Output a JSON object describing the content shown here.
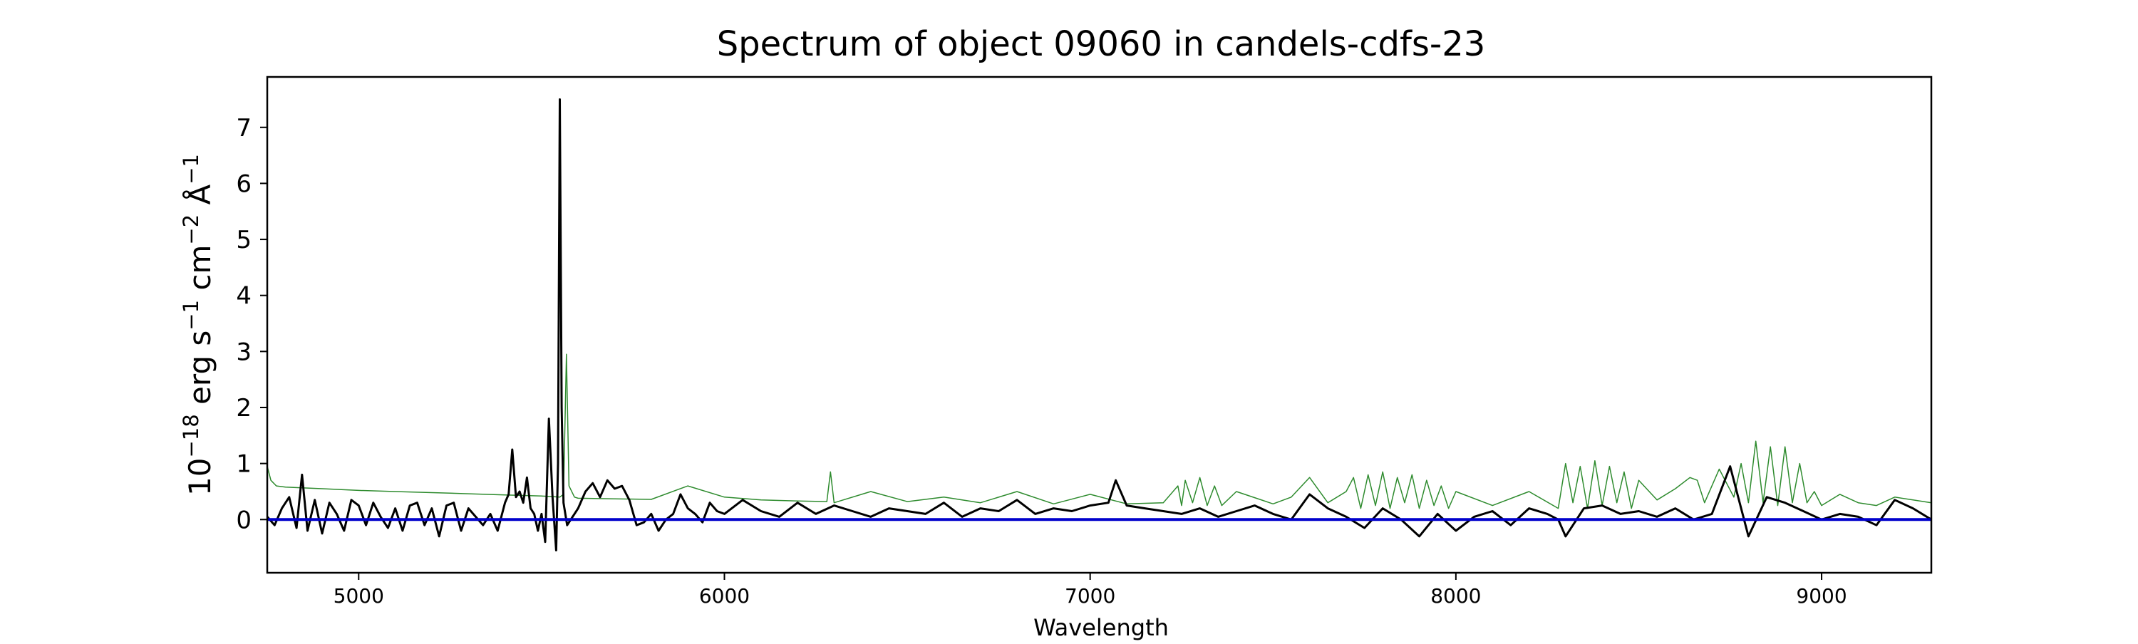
{
  "chart_data": {
    "type": "line",
    "title": "Spectrum of object 09060 in candels-cdfs-23",
    "xlabel": "Wavelength",
    "ylabel_prefix": "10",
    "ylabel_exp1": "−18",
    "ylabel_mid1": " erg s",
    "ylabel_exp2": "−1",
    "ylabel_mid2": " cm",
    "ylabel_exp3": "−2",
    "ylabel_mid3": " Å",
    "ylabel_exp4": "−1",
    "xlim": [
      4750,
      9300
    ],
    "ylim": [
      -0.95,
      7.9
    ],
    "xticks": [
      5000,
      6000,
      7000,
      8000,
      9000
    ],
    "xtick_labels": [
      "5000",
      "6000",
      "7000",
      "8000",
      "9000"
    ],
    "yticks": [
      0,
      1,
      2,
      3,
      4,
      5,
      6,
      7
    ],
    "ytick_labels": [
      "0",
      "1",
      "2",
      "3",
      "4",
      "5",
      "6",
      "7"
    ],
    "grid": false,
    "colors": {
      "spectrum": "#000000",
      "template": "#2e8b2e",
      "zero_line": "#0000cc",
      "axes": "#000000"
    },
    "series": [
      {
        "role": "spectrum",
        "x": [
          4750,
          4770,
          4790,
          4810,
          4830,
          4845,
          4860,
          4880,
          4900,
          4920,
          4940,
          4960,
          4980,
          5000,
          5020,
          5040,
          5060,
          5080,
          5100,
          5120,
          5140,
          5160,
          5180,
          5200,
          5220,
          5240,
          5260,
          5280,
          5300,
          5320,
          5340,
          5360,
          5380,
          5400,
          5410,
          5420,
          5430,
          5440,
          5450,
          5460,
          5470,
          5480,
          5490,
          5500,
          5510,
          5520,
          5530,
          5540,
          5545,
          5550,
          5555,
          5560,
          5570,
          5580,
          5590,
          5600,
          5620,
          5640,
          5660,
          5680,
          5700,
          5720,
          5740,
          5760,
          5780,
          5800,
          5820,
          5840,
          5860,
          5880,
          5900,
          5920,
          5940,
          5960,
          5980,
          6000,
          6050,
          6100,
          6150,
          6200,
          6250,
          6300,
          6350,
          6400,
          6450,
          6500,
          6550,
          6600,
          6650,
          6700,
          6750,
          6800,
          6850,
          6900,
          6950,
          7000,
          7050,
          7070,
          7100,
          7150,
          7200,
          7250,
          7300,
          7350,
          7400,
          7450,
          7500,
          7550,
          7600,
          7650,
          7700,
          7750,
          7800,
          7850,
          7900,
          7950,
          8000,
          8050,
          8100,
          8150,
          8200,
          8250,
          8280,
          8300,
          8350,
          8400,
          8450,
          8500,
          8550,
          8600,
          8650,
          8700,
          8750,
          8800,
          8850,
          8900,
          8950,
          9000,
          9050,
          9100,
          9150,
          9200,
          9250,
          9300
        ],
        "y": [
          0.05,
          -0.1,
          0.2,
          0.4,
          -0.15,
          0.8,
          -0.2,
          0.35,
          -0.25,
          0.3,
          0.1,
          -0.2,
          0.35,
          0.25,
          -0.1,
          0.3,
          0.05,
          -0.15,
          0.2,
          -0.2,
          0.25,
          0.3,
          -0.1,
          0.2,
          -0.3,
          0.25,
          0.3,
          -0.2,
          0.2,
          0.05,
          -0.1,
          0.1,
          -0.2,
          0.3,
          0.45,
          1.25,
          0.4,
          0.5,
          0.3,
          0.75,
          0.2,
          0.1,
          -0.2,
          0.1,
          -0.4,
          1.8,
          0.4,
          -0.55,
          1.0,
          7.5,
          2.0,
          0.3,
          -0.1,
          0.0,
          0.1,
          0.2,
          0.5,
          0.65,
          0.4,
          0.7,
          0.55,
          0.6,
          0.35,
          -0.1,
          -0.05,
          0.1,
          -0.2,
          0.0,
          0.1,
          0.45,
          0.2,
          0.1,
          -0.05,
          0.3,
          0.15,
          0.1,
          0.35,
          0.15,
          0.05,
          0.3,
          0.1,
          0.25,
          0.15,
          0.05,
          0.2,
          0.15,
          0.1,
          0.3,
          0.05,
          0.2,
          0.15,
          0.35,
          0.1,
          0.2,
          0.15,
          0.25,
          0.3,
          0.7,
          0.25,
          0.2,
          0.15,
          0.1,
          0.2,
          0.05,
          0.15,
          0.25,
          0.1,
          0.0,
          0.45,
          0.2,
          0.05,
          -0.15,
          0.2,
          0.0,
          -0.3,
          0.1,
          -0.2,
          0.05,
          0.15,
          -0.1,
          0.2,
          0.1,
          0.0,
          -0.3,
          0.2,
          0.25,
          0.1,
          0.15,
          0.05,
          0.2,
          0.0,
          0.1,
          0.95,
          -0.3,
          0.4,
          0.3,
          0.15,
          0.0,
          0.1,
          0.05,
          -0.1,
          0.35,
          0.2,
          0.0
        ],
        "width": 3
      },
      {
        "role": "template",
        "x": [
          4750,
          4760,
          4775,
          4800,
          4900,
          5000,
          5100,
          5200,
          5300,
          5400,
          5500,
          5550,
          5560,
          5568,
          5575,
          5590,
          5600,
          5700,
          5800,
          5900,
          6000,
          6100,
          6200,
          6280,
          6290,
          6300,
          6400,
          6500,
          6600,
          6700,
          6800,
          6900,
          7000,
          7100,
          7200,
          7240,
          7250,
          7260,
          7280,
          7300,
          7320,
          7340,
          7360,
          7400,
          7500,
          7550,
          7600,
          7650,
          7700,
          7720,
          7740,
          7760,
          7780,
          7800,
          7820,
          7840,
          7860,
          7880,
          7900,
          7920,
          7940,
          7960,
          7980,
          8000,
          8100,
          8200,
          8280,
          8300,
          8320,
          8340,
          8360,
          8380,
          8400,
          8420,
          8440,
          8460,
          8480,
          8500,
          8550,
          8600,
          8640,
          8660,
          8680,
          8700,
          8720,
          8760,
          8780,
          8800,
          8820,
          8840,
          8860,
          8880,
          8900,
          8920,
          8940,
          8960,
          8980,
          9000,
          9050,
          9100,
          9150,
          9200,
          9250,
          9300
        ],
        "y": [
          0.95,
          0.7,
          0.6,
          0.58,
          0.55,
          0.52,
          0.5,
          0.48,
          0.46,
          0.44,
          0.42,
          0.4,
          0.45,
          2.95,
          0.6,
          0.4,
          0.38,
          0.37,
          0.36,
          0.6,
          0.4,
          0.35,
          0.33,
          0.32,
          0.85,
          0.3,
          0.5,
          0.32,
          0.4,
          0.3,
          0.5,
          0.28,
          0.45,
          0.28,
          0.3,
          0.6,
          0.25,
          0.7,
          0.3,
          0.75,
          0.25,
          0.6,
          0.25,
          0.5,
          0.28,
          0.4,
          0.75,
          0.3,
          0.5,
          0.75,
          0.2,
          0.8,
          0.25,
          0.85,
          0.2,
          0.75,
          0.3,
          0.8,
          0.2,
          0.7,
          0.25,
          0.6,
          0.2,
          0.5,
          0.25,
          0.5,
          0.2,
          1.0,
          0.3,
          0.95,
          0.2,
          1.05,
          0.25,
          0.95,
          0.3,
          0.85,
          0.2,
          0.7,
          0.35,
          0.55,
          0.75,
          0.7,
          0.3,
          0.6,
          0.9,
          0.4,
          1.0,
          0.3,
          1.4,
          0.3,
          1.3,
          0.25,
          1.3,
          0.3,
          1.0,
          0.3,
          0.5,
          0.25,
          0.45,
          0.3,
          0.25,
          0.4,
          0.35,
          0.3
        ],
        "width": 1.5
      },
      {
        "role": "zero_line",
        "x": [
          4750,
          9300
        ],
        "y": [
          0,
          0
        ],
        "width": 4
      }
    ]
  }
}
